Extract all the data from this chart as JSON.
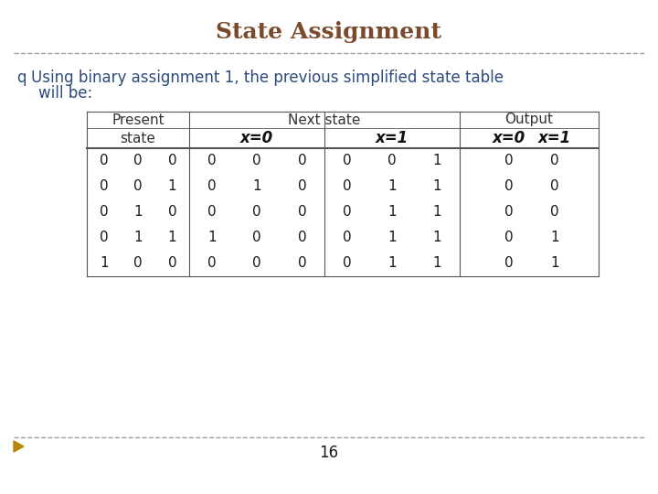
{
  "title": "State Assignment",
  "title_color": "#7B4A2D",
  "title_fontsize": 18,
  "subtitle_fontsize": 12,
  "subtitle_color": "#2E4A7A",
  "background_color": "#FFFFFF",
  "page_number": "16",
  "table_data": [
    [
      "0",
      "0",
      "0",
      "0",
      "0",
      "0",
      "0",
      "0",
      "1",
      "0",
      "0"
    ],
    [
      "0",
      "0",
      "1",
      "0",
      "1",
      "0",
      "0",
      "1",
      "1",
      "0",
      "0"
    ],
    [
      "0",
      "1",
      "0",
      "0",
      "0",
      "0",
      "0",
      "1",
      "1",
      "0",
      "0"
    ],
    [
      "0",
      "1",
      "1",
      "1",
      "0",
      "0",
      "0",
      "1",
      "1",
      "0",
      "1"
    ],
    [
      "1",
      "0",
      "0",
      "0",
      "0",
      "0",
      "0",
      "1",
      "1",
      "0",
      "1"
    ]
  ],
  "dashed_line_color": "#A0A0A0",
  "table_line_color": "#555555",
  "bullet_color": "#2E4A7A",
  "arrow_color": "#B8860B",
  "data_fontsize": 11,
  "header_fontsize": 11,
  "header_bold_fontsize": 12
}
